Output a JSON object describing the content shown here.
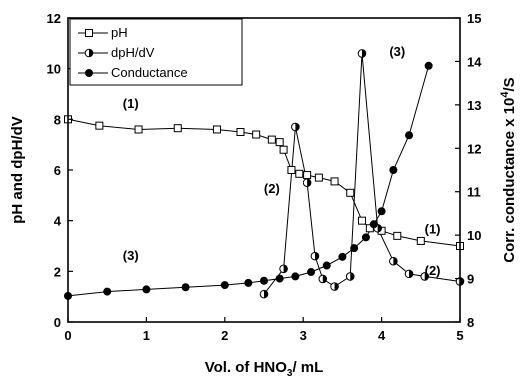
{
  "chart_data": {
    "type": "line",
    "xlabel": "Vol. of HNO3/ mL",
    "xlabel_main": "Vol. of HNO",
    "xlabel_sub": "3",
    "xlabel_rest": "/ mL",
    "ylabel": "pH and dpH/dV",
    "y2label": "Corr. conductance x 10^4/S",
    "y2label_main": "Corr. conductance x 10",
    "y2label_sup": "4",
    "y2label_rest": "/S",
    "xlim": [
      0,
      5
    ],
    "ylim": [
      0,
      12
    ],
    "y2lim": [
      8,
      15
    ],
    "xticks": [
      "0",
      "1",
      "2",
      "3",
      "4",
      "5"
    ],
    "yticks": [
      "0",
      "2",
      "4",
      "6",
      "8",
      "10",
      "12"
    ],
    "y2ticks": [
      "8",
      "9",
      "10",
      "11",
      "12",
      "13",
      "14",
      "15"
    ],
    "legend_position": "top-left",
    "series": [
      {
        "name": "pH",
        "axis": "left",
        "marker": "open-square",
        "x": [
          0,
          0.4,
          0.9,
          1.4,
          1.9,
          2.2,
          2.4,
          2.6,
          2.7,
          2.75,
          2.85,
          2.95,
          3.05,
          3.2,
          3.4,
          3.6,
          3.75,
          3.85,
          4.0,
          4.2,
          4.5,
          5.0
        ],
        "y": [
          8.0,
          7.75,
          7.6,
          7.65,
          7.6,
          7.5,
          7.4,
          7.2,
          7.1,
          6.8,
          6.0,
          5.85,
          5.8,
          5.7,
          5.55,
          5.1,
          4.0,
          3.7,
          3.6,
          3.4,
          3.2,
          3.0
        ]
      },
      {
        "name": "dpH/dV",
        "axis": "left",
        "marker": "half-filled-circle",
        "x": [
          2.5,
          2.75,
          2.9,
          3.05,
          3.15,
          3.25,
          3.4,
          3.6,
          3.75,
          3.95,
          4.15,
          4.35,
          4.55,
          5.0
        ],
        "y": [
          1.1,
          2.1,
          7.7,
          5.5,
          2.6,
          1.7,
          1.4,
          1.8,
          10.6,
          3.7,
          2.4,
          1.9,
          1.8,
          1.6
        ]
      },
      {
        "name": "Conductance",
        "axis": "right",
        "marker": "filled-circle",
        "x": [
          0,
          0.5,
          1.0,
          1.5,
          2.0,
          2.3,
          2.5,
          2.7,
          2.9,
          3.1,
          3.3,
          3.5,
          3.65,
          3.8,
          3.9,
          4.0,
          4.15,
          4.35,
          4.6
        ],
        "y": [
          8.6,
          8.7,
          8.75,
          8.8,
          8.85,
          8.9,
          8.95,
          9.0,
          9.05,
          9.15,
          9.3,
          9.5,
          9.7,
          9.95,
          10.25,
          10.55,
          11.5,
          12.3,
          13.9
        ]
      }
    ],
    "annotations": [
      {
        "text": "(1)",
        "x": 0.8,
        "y": 8.45
      },
      {
        "text": "(2)",
        "x": 2.6,
        "y": 5.1
      },
      {
        "text": "(3)",
        "x": 0.8,
        "y": 2.45
      },
      {
        "text": "(3)",
        "x": 4.2,
        "y": 10.5
      },
      {
        "text": "(1)",
        "x": 4.65,
        "y": 3.5
      },
      {
        "text": "(2)",
        "x": 4.65,
        "y": 1.85
      }
    ]
  }
}
